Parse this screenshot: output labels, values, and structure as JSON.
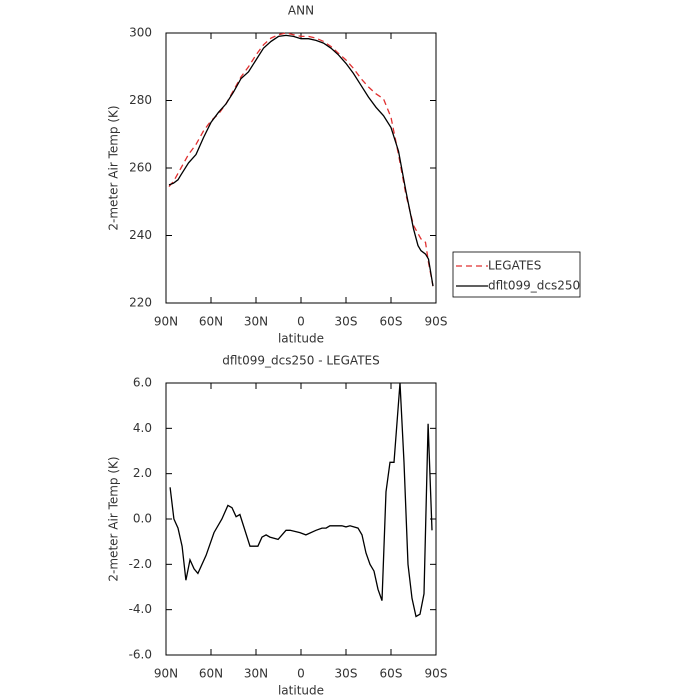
{
  "chart_data": [
    {
      "type": "line",
      "title": "ANN",
      "xlabel": "latitude",
      "ylabel": "2-meter Air Temp (K)",
      "xlim": [
        90,
        -90
      ],
      "xticks": [
        {
          "value": 90,
          "label": "90N"
        },
        {
          "value": 60,
          "label": "60N"
        },
        {
          "value": 30,
          "label": "30N"
        },
        0,
        {
          "value": -30,
          "label": "30S"
        },
        {
          "value": -60,
          "label": "60S"
        },
        {
          "value": -90,
          "label": "90S"
        }
      ],
      "ylim": [
        220,
        300
      ],
      "yticks": [
        220,
        240,
        260,
        280,
        300
      ],
      "legend": "right",
      "series": [
        {
          "name": "LEGATES",
          "color": "#e03030",
          "dash": "6,4",
          "x": [
            88,
            85,
            80,
            75,
            70,
            65,
            60,
            55,
            50,
            45,
            40,
            35,
            30,
            25,
            20,
            15,
            10,
            5,
            0,
            -5,
            -10,
            -15,
            -20,
            -25,
            -30,
            -35,
            -40,
            -45,
            -50,
            -55,
            -60,
            -65,
            -70,
            -75,
            -80,
            -83,
            -85,
            -88
          ],
          "values": [
            254.5,
            256,
            260,
            264,
            267,
            271,
            274,
            276,
            279,
            283,
            287,
            290,
            293.5,
            296.5,
            298.5,
            299.5,
            300,
            299.5,
            299,
            299,
            298.5,
            297.5,
            296,
            294,
            292,
            289.5,
            286.5,
            284,
            282,
            280.5,
            275,
            264,
            252,
            243,
            239,
            238,
            232,
            225
          ]
        },
        {
          "name": "dflt099_dcs250",
          "color": "#000000",
          "x": [
            88,
            85,
            82,
            80,
            75,
            70,
            65,
            60,
            55,
            50,
            45,
            40,
            35,
            30,
            25,
            20,
            15,
            10,
            5,
            0,
            -5,
            -10,
            -15,
            -20,
            -25,
            -30,
            -35,
            -40,
            -45,
            -50,
            -55,
            -60,
            -65,
            -70,
            -75,
            -78,
            -80,
            -83,
            -85,
            -88
          ],
          "values": [
            255,
            255.5,
            256.5,
            258,
            261.5,
            264,
            269,
            273.5,
            276.5,
            279,
            282.5,
            286.5,
            288.5,
            292,
            295.5,
            297.5,
            299,
            299.3,
            299,
            298.3,
            298.3,
            297.8,
            297,
            295.5,
            293.5,
            291,
            288,
            284.5,
            281,
            278,
            275.5,
            272,
            265,
            253,
            242,
            237,
            235.5,
            234.5,
            233,
            225
          ]
        }
      ]
    },
    {
      "type": "line",
      "title": "dflt099_dcs250 - LEGATES",
      "xlabel": "latitude",
      "ylabel": "2-meter Air Temp (K)",
      "xlim": [
        90,
        -90
      ],
      "xticks": [
        {
          "value": 90,
          "label": "90N"
        },
        {
          "value": 60,
          "label": "60N"
        },
        {
          "value": 30,
          "label": "30N"
        },
        0,
        {
          "value": -30,
          "label": "30S"
        },
        {
          "value": -60,
          "label": "60S"
        },
        {
          "value": -90,
          "label": "90S"
        }
      ],
      "ylim": [
        -6,
        6
      ],
      "yticks": [
        {
          "value": -6,
          "label": "-6.0"
        },
        {
          "value": -4,
          "label": "-4.0"
        },
        {
          "value": -2,
          "label": "-2.0"
        },
        {
          "value": 0,
          "label": "0.0"
        },
        {
          "value": 2,
          "label": "2.0"
        },
        {
          "value": 4,
          "label": "4.0"
        },
        {
          "value": 6,
          "label": "6.0"
        }
      ],
      "series": [
        {
          "color": "#000000",
          "x": [
            87.3,
            84.7,
            82,
            79.3,
            76.7,
            74,
            71.3,
            68.7,
            63.3,
            58,
            52.7,
            48.7,
            46,
            43.3,
            40.7,
            34,
            28.7,
            26,
            23.3,
            20.7,
            15.3,
            10,
            7.3,
            0.7,
            -3.3,
            -10,
            -14,
            -16.7,
            -19.3,
            -22,
            -27.3,
            -30,
            -32.7,
            -38,
            -40.7,
            -43.3,
            -46,
            -48.7,
            -51.3,
            -54,
            -56.7,
            -59.3,
            -62,
            -66,
            -68.7,
            -71.3,
            -74,
            -76.7,
            -79.3,
            -82,
            -84.7,
            -87.3
          ],
          "values": [
            1.4,
            0,
            -0.4,
            -1.2,
            -2.7,
            -1.8,
            -2.2,
            -2.4,
            -1.6,
            -0.6,
            0,
            0.6,
            0.5,
            0.1,
            0.2,
            -1.2,
            -1.2,
            -0.8,
            -0.7,
            -0.8,
            -0.9,
            -0.5,
            -0.5,
            -0.6,
            -0.7,
            -0.5,
            -0.4,
            -0.4,
            -0.3,
            -0.3,
            -0.3,
            -0.35,
            -0.3,
            -0.4,
            -0.7,
            -1.5,
            -2,
            -2.3,
            -3.1,
            -3.6,
            1.2,
            2.5,
            2.5,
            6,
            2.5,
            -2,
            -3.5,
            -4.3,
            -4.2,
            -3.3,
            4.2,
            -0.5
          ]
        }
      ]
    }
  ]
}
